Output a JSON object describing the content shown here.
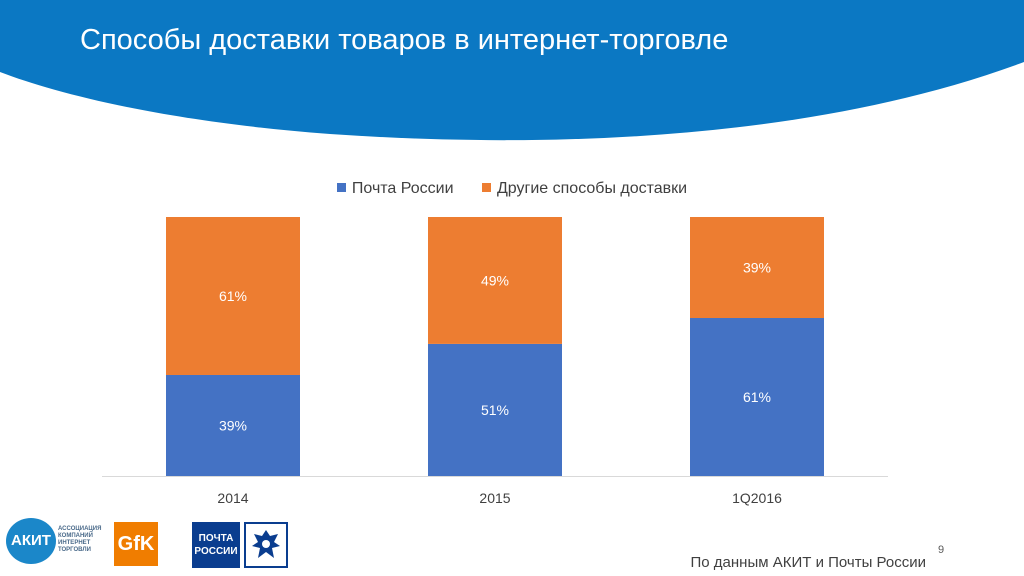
{
  "title": "Способы доставки товаров в интернет-торговле",
  "chart_data": {
    "type": "bar",
    "stacked": true,
    "categories": [
      "2014",
      "2015",
      "1Q2016"
    ],
    "series": [
      {
        "name": "Почта России",
        "values": [
          39,
          51,
          61
        ],
        "labels": [
          "39%",
          "51%",
          "61%"
        ],
        "color": "#4472c4"
      },
      {
        "name": "Другие способы доставки",
        "values": [
          61,
          49,
          39
        ],
        "labels": [
          "61%",
          "49%",
          "39%"
        ],
        "color": "#ed7d31"
      }
    ],
    "ylim": [
      0,
      100
    ],
    "legend_position": "top",
    "grid": false
  },
  "logos": {
    "akit": {
      "name": "АКИТ",
      "caption": "АССОЦИАЦИЯ КОМПАНИЙ ИНТЕРНЕТ ТОРГОВЛИ"
    },
    "gfk": {
      "name": "GfK"
    },
    "post": {
      "name": "ПОЧТА РОССИИ"
    }
  },
  "source": "По данным АКИТ и Почты России",
  "page_number": "9",
  "colors": {
    "header": "#0b78c3"
  }
}
